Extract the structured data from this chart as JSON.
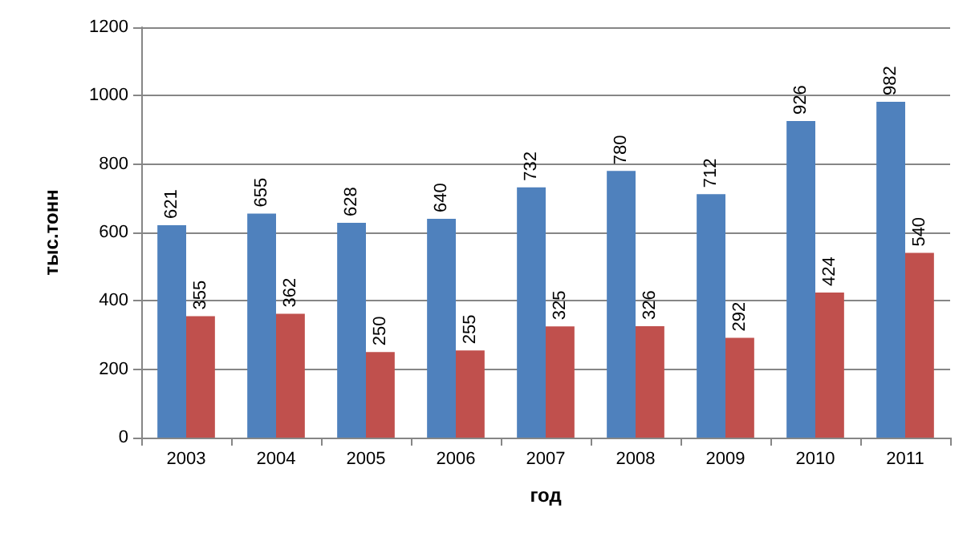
{
  "chart_data": {
    "type": "bar",
    "xlabel": "год",
    "ylabel": "тыс.тонн",
    "categories": [
      "2003",
      "2004",
      "2005",
      "2006",
      "2007",
      "2008",
      "2009",
      "2010",
      "2011"
    ],
    "series": [
      {
        "color": "#4f81bd",
        "values": [
          621,
          655,
          628,
          640,
          732,
          780,
          712,
          926,
          982
        ]
      },
      {
        "color": "#c0504d",
        "values": [
          355,
          362,
          250,
          255,
          325,
          326,
          292,
          424,
          540
        ]
      }
    ],
    "ylim": [
      0,
      1200
    ],
    "yticks": [
      0,
      200,
      400,
      600,
      800,
      1000,
      1200
    ],
    "grid": "y",
    "data_labels": true
  }
}
